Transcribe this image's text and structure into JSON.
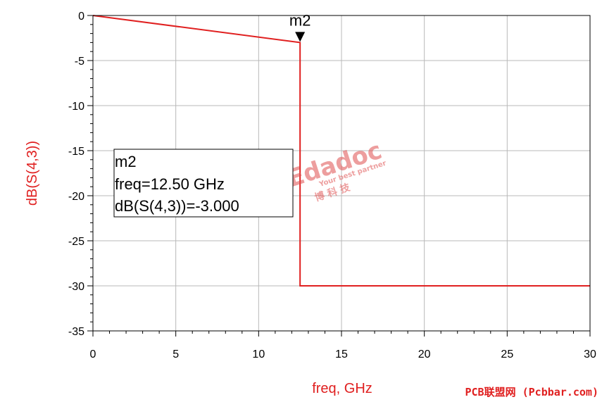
{
  "chart_data": {
    "type": "line",
    "xlabel": "freq, GHz",
    "ylabel": "dB(S(4,3))",
    "xlim": [
      0,
      30
    ],
    "ylim": [
      -35,
      0
    ],
    "x_ticks": [
      "0",
      "5",
      "10",
      "15",
      "20",
      "25",
      "30"
    ],
    "y_ticks": [
      "0",
      "-5",
      "-10",
      "-15",
      "-20",
      "-25",
      "-30",
      "-35"
    ],
    "grid": true,
    "series": [
      {
        "color": "#e02020",
        "x": [
          0,
          12.5,
          12.5,
          30
        ],
        "y": [
          0,
          -3.0,
          -30.0,
          -30.0
        ]
      }
    ],
    "marker": {
      "name": "m2",
      "x": 12.5,
      "y": -3.0,
      "readout_lines": [
        "m2",
        "freq=12.50 GHz",
        "dB(S(4,3))=-3.000"
      ]
    }
  },
  "watermark": {
    "logo": "Edadoc",
    "tagline": "Your best partner",
    "chinese": "博  科  技"
  },
  "footer": {
    "credit": "PCB联盟网 (Pcbbar.com)"
  },
  "colors": {
    "axis_title": "#e02020",
    "trace": "#e02020",
    "grid": "#b8b8b8",
    "watermark": "#e05050",
    "footer": "#e02020"
  }
}
